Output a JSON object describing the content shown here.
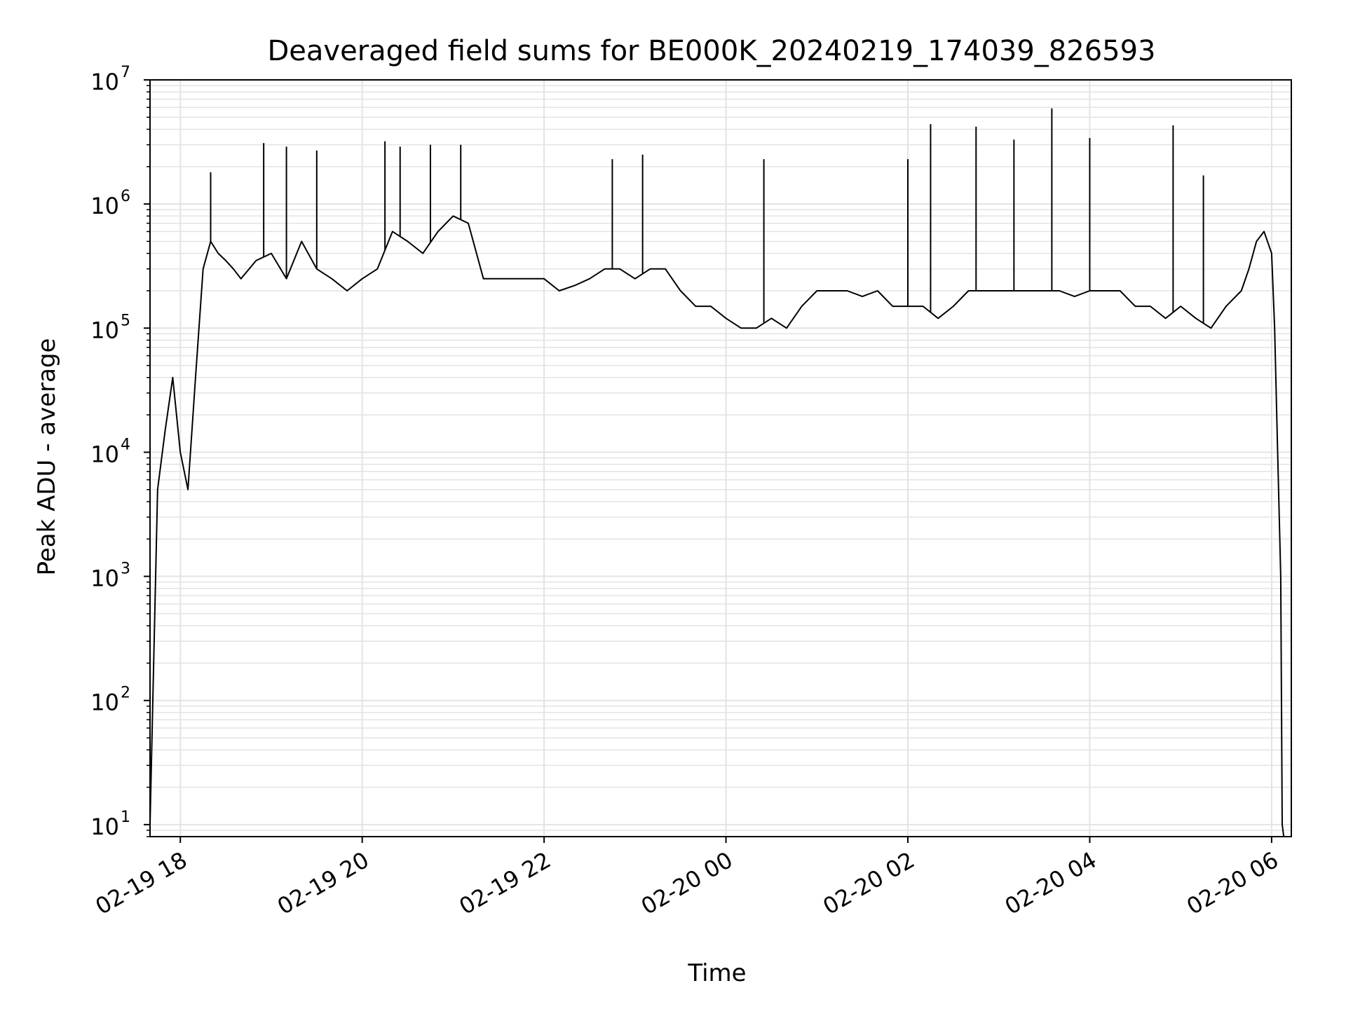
{
  "chart_data": {
    "type": "line",
    "title": "Deaveraged field sums for BE000K_20240219_174039_826593",
    "xlabel": "Time",
    "ylabel": "Peak ADU - average",
    "yscale": "log",
    "ylim": [
      8,
      10000000
    ],
    "xlim": [
      "02-19 17:40",
      "02-20 06:13"
    ],
    "grid": true,
    "line_color": "#000000",
    "grid_color": "#e3e3e3",
    "x_ticks": [
      {
        "label": "02-19 18",
        "value": "02-19 18:00"
      },
      {
        "label": "02-19 20",
        "value": "02-19 20:00"
      },
      {
        "label": "02-19 22",
        "value": "02-19 22:00"
      },
      {
        "label": "02-20 00",
        "value": "02-20 00:00"
      },
      {
        "label": "02-20 02",
        "value": "02-20 02:00"
      },
      {
        "label": "02-20 04",
        "value": "02-20 04:00"
      },
      {
        "label": "02-20 06",
        "value": "02-20 06:00"
      }
    ],
    "y_ticks": [
      {
        "base": "10",
        "exp": "1",
        "value": 10
      },
      {
        "base": "10",
        "exp": "2",
        "value": 100
      },
      {
        "base": "10",
        "exp": "3",
        "value": 1000
      },
      {
        "base": "10",
        "exp": "4",
        "value": 10000
      },
      {
        "base": "10",
        "exp": "5",
        "value": 100000
      },
      {
        "base": "10",
        "exp": "6",
        "value": 1000000
      },
      {
        "base": "10",
        "exp": "7",
        "value": 10000000
      }
    ],
    "series": [
      {
        "x": [
          "02-19 17:40",
          "02-19 17:45",
          "02-19 17:50",
          "02-19 17:55",
          "02-19 18:00",
          "02-19 18:05",
          "02-19 18:10",
          "02-19 18:15",
          "02-19 18:20",
          "02-19 18:25",
          "02-19 18:30",
          "02-19 18:35",
          "02-19 18:40",
          "02-19 18:50",
          "02-19 19:00",
          "02-19 19:10",
          "02-19 19:20",
          "02-19 19:30",
          "02-19 19:40",
          "02-19 19:50",
          "02-19 20:00",
          "02-19 20:10",
          "02-19 20:20",
          "02-19 20:30",
          "02-19 20:40",
          "02-19 20:50",
          "02-19 21:00",
          "02-19 21:10",
          "02-19 21:20",
          "02-19 21:30",
          "02-19 21:40",
          "02-19 21:50",
          "02-19 22:00",
          "02-19 22:10",
          "02-19 22:20",
          "02-19 22:30",
          "02-19 22:40",
          "02-19 22:50",
          "02-19 23:00",
          "02-19 23:10",
          "02-19 23:20",
          "02-19 23:30",
          "02-19 23:40",
          "02-19 23:50",
          "02-20 00:00",
          "02-20 00:10",
          "02-20 00:20",
          "02-20 00:30",
          "02-20 00:40",
          "02-20 00:50",
          "02-20 01:00",
          "02-20 01:10",
          "02-20 01:20",
          "02-20 01:30",
          "02-20 01:40",
          "02-20 01:50",
          "02-20 02:00",
          "02-20 02:10",
          "02-20 02:20",
          "02-20 02:30",
          "02-20 02:40",
          "02-20 02:50",
          "02-20 03:00",
          "02-20 03:10",
          "02-20 03:20",
          "02-20 03:30",
          "02-20 03:40",
          "02-20 03:50",
          "02-20 04:00",
          "02-20 04:10",
          "02-20 04:20",
          "02-20 04:30",
          "02-20 04:40",
          "02-20 04:50",
          "02-20 05:00",
          "02-20 05:10",
          "02-20 05:20",
          "02-20 05:30",
          "02-20 05:40",
          "02-20 05:45",
          "02-20 05:50",
          "02-20 05:55",
          "02-20 06:00",
          "02-20 06:02",
          "02-20 06:04",
          "02-20 06:06",
          "02-20 06:07",
          "02-20 06:08"
        ],
        "values": [
          10,
          5000,
          15000,
          40000,
          10000,
          5000,
          40000,
          300000,
          500000,
          400000,
          350000,
          300000,
          250000,
          350000,
          400000,
          250000,
          500000,
          300000,
          250000,
          200000,
          250000,
          300000,
          600000,
          500000,
          400000,
          600000,
          800000,
          700000,
          250000,
          250000,
          250000,
          250000,
          250000,
          200000,
          220000,
          250000,
          300000,
          300000,
          250000,
          300000,
          300000,
          200000,
          150000,
          150000,
          120000,
          100000,
          100000,
          120000,
          100000,
          150000,
          200000,
          200000,
          200000,
          180000,
          200000,
          150000,
          150000,
          150000,
          120000,
          150000,
          200000,
          200000,
          200000,
          200000,
          200000,
          200000,
          200000,
          180000,
          200000,
          200000,
          200000,
          150000,
          150000,
          120000,
          150000,
          120000,
          100000,
          150000,
          200000,
          300000,
          500000,
          600000,
          400000,
          100000,
          10000,
          1000,
          10,
          8
        ]
      }
    ],
    "spikes": [
      {
        "x": "02-19 18:20",
        "y": 1800000
      },
      {
        "x": "02-19 18:55",
        "y": 3100000
      },
      {
        "x": "02-19 19:10",
        "y": 2900000
      },
      {
        "x": "02-19 19:30",
        "y": 2700000
      },
      {
        "x": "02-19 20:15",
        "y": 3200000
      },
      {
        "x": "02-19 20:25",
        "y": 2900000
      },
      {
        "x": "02-19 20:45",
        "y": 3000000
      },
      {
        "x": "02-19 21:05",
        "y": 3000000
      },
      {
        "x": "02-19 22:45",
        "y": 2300000
      },
      {
        "x": "02-19 23:05",
        "y": 2500000
      },
      {
        "x": "02-20 00:25",
        "y": 2300000
      },
      {
        "x": "02-20 02:00",
        "y": 2300000
      },
      {
        "x": "02-20 02:15",
        "y": 4400000
      },
      {
        "x": "02-20 02:45",
        "y": 4200000
      },
      {
        "x": "02-20 03:10",
        "y": 3300000
      },
      {
        "x": "02-20 03:35",
        "y": 5900000
      },
      {
        "x": "02-20 04:00",
        "y": 3400000
      },
      {
        "x": "02-20 04:55",
        "y": 4300000
      },
      {
        "x": "02-20 05:15",
        "y": 1700000
      }
    ]
  }
}
